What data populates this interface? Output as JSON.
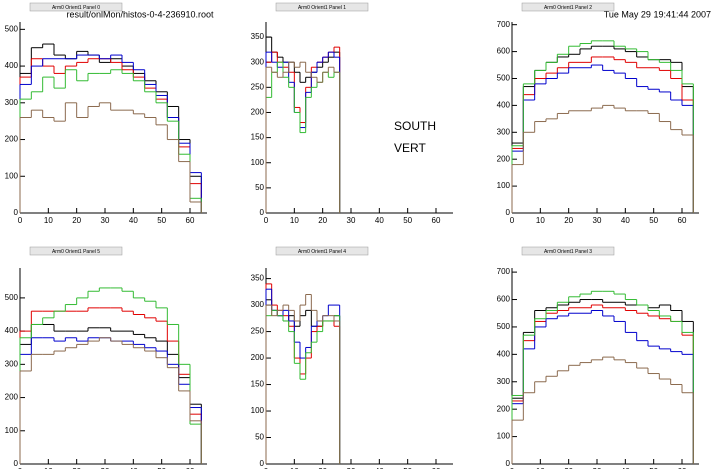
{
  "header": {
    "file": "result/onlMon/histos-0-4-236910.root",
    "date": "Tue May 29 19:41:44 2007"
  },
  "chart_data": [
    {
      "type": "histogram",
      "title": "Arm0 Orient1 Panel 0",
      "bins": [
        0,
        4,
        8,
        12,
        16,
        20,
        24,
        28,
        32,
        36,
        40,
        44,
        48,
        52,
        56,
        60,
        64
      ],
      "xlim": [
        0,
        66
      ],
      "ylim": [
        0,
        520
      ],
      "xticks": [
        0,
        10,
        20,
        30,
        40,
        50,
        60
      ],
      "yticks": [
        0,
        100,
        200,
        300,
        400,
        500
      ],
      "series": [
        {
          "color": "#000000",
          "values": [
            380,
            450,
            460,
            430,
            420,
            440,
            430,
            410,
            420,
            400,
            380,
            360,
            330,
            290,
            200,
            100
          ]
        },
        {
          "color": "#e00000",
          "values": [
            370,
            420,
            400,
            380,
            400,
            410,
            420,
            420,
            410,
            390,
            370,
            340,
            310,
            260,
            180,
            80
          ]
        },
        {
          "color": "#0000cc",
          "values": [
            350,
            400,
            420,
            420,
            420,
            430,
            430,
            420,
            430,
            410,
            390,
            350,
            320,
            260,
            190,
            110
          ]
        },
        {
          "color": "#33bb33",
          "values": [
            310,
            330,
            370,
            340,
            390,
            360,
            380,
            380,
            390,
            380,
            360,
            330,
            300,
            250,
            160,
            40
          ]
        },
        {
          "color": "#8b6a4e",
          "values": [
            260,
            280,
            260,
            250,
            300,
            260,
            290,
            300,
            280,
            280,
            270,
            260,
            240,
            200,
            140,
            30
          ]
        }
      ]
    },
    {
      "type": "histogram",
      "title": "Arm0 Orient1 Panel 1",
      "annotations": [
        "SOUTH",
        "VERT"
      ],
      "bins": [
        0,
        2,
        4,
        6,
        8,
        10,
        12,
        14,
        16,
        18,
        20,
        22,
        24,
        26
      ],
      "xlim": [
        0,
        66
      ],
      "ylim": [
        0,
        380
      ],
      "xticks": [
        0,
        10,
        20,
        30,
        40,
        50,
        60
      ],
      "yticks": [
        0,
        50,
        100,
        150,
        200,
        250,
        300,
        350
      ],
      "series": [
        {
          "color": "#000000",
          "values": [
            350,
            320,
            310,
            300,
            300,
            280,
            260,
            270,
            280,
            290,
            300,
            310,
            320
          ]
        },
        {
          "color": "#e00000",
          "values": [
            300,
            320,
            300,
            290,
            280,
            210,
            180,
            250,
            290,
            300,
            310,
            320,
            330
          ]
        },
        {
          "color": "#0000cc",
          "values": [
            320,
            300,
            290,
            300,
            260,
            200,
            170,
            240,
            280,
            300,
            310,
            320,
            310
          ]
        },
        {
          "color": "#33bb33",
          "values": [
            230,
            280,
            300,
            270,
            250,
            200,
            160,
            230,
            250,
            260,
            280,
            270,
            280
          ]
        },
        {
          "color": "#8b6a4e",
          "values": [
            290,
            280,
            270,
            280,
            300,
            290,
            300,
            280,
            270,
            260,
            280,
            290,
            280
          ]
        }
      ]
    },
    {
      "type": "histogram",
      "title": "Arm0 Orient1 Panel 2",
      "bins": [
        0,
        4,
        8,
        12,
        16,
        20,
        24,
        28,
        32,
        36,
        40,
        44,
        48,
        52,
        56,
        60,
        64
      ],
      "xlim": [
        0,
        66
      ],
      "ylim": [
        0,
        710
      ],
      "xticks": [
        0,
        10,
        20,
        30,
        40,
        50,
        60
      ],
      "yticks": [
        0,
        100,
        200,
        300,
        400,
        500,
        600,
        700
      ],
      "series": [
        {
          "color": "#000000",
          "values": [
            260,
            470,
            530,
            560,
            580,
            590,
            610,
            620,
            620,
            610,
            600,
            580,
            570,
            570,
            560,
            470
          ]
        },
        {
          "color": "#e00000",
          "values": [
            240,
            440,
            500,
            520,
            540,
            560,
            560,
            580,
            580,
            570,
            560,
            540,
            540,
            530,
            500,
            420
          ]
        },
        {
          "color": "#0000cc",
          "values": [
            230,
            420,
            480,
            500,
            520,
            540,
            540,
            550,
            530,
            520,
            500,
            470,
            460,
            450,
            420,
            400
          ]
        },
        {
          "color": "#33bb33",
          "values": [
            250,
            480,
            530,
            560,
            590,
            620,
            630,
            640,
            640,
            620,
            610,
            600,
            570,
            560,
            530,
            480
          ]
        },
        {
          "color": "#8b6a4e",
          "values": [
            180,
            300,
            340,
            350,
            370,
            380,
            380,
            390,
            400,
            390,
            380,
            380,
            370,
            340,
            310,
            290
          ]
        }
      ]
    },
    {
      "type": "histogram",
      "title": "Arm0 Orient1 Panel 5",
      "bins": [
        0,
        4,
        8,
        12,
        16,
        20,
        24,
        28,
        32,
        36,
        40,
        44,
        48,
        52,
        56,
        60,
        64
      ],
      "xlim": [
        0,
        66
      ],
      "ylim": [
        0,
        590
      ],
      "xticks": [
        0,
        10,
        20,
        30,
        40,
        50,
        60
      ],
      "yticks": [
        0,
        100,
        200,
        300,
        400,
        500
      ],
      "series": [
        {
          "color": "#000000",
          "values": [
            360,
            420,
            420,
            400,
            400,
            400,
            410,
            410,
            400,
            400,
            390,
            380,
            370,
            330,
            260,
            180
          ]
        },
        {
          "color": "#e00000",
          "values": [
            400,
            460,
            460,
            460,
            460,
            460,
            470,
            470,
            470,
            460,
            450,
            440,
            430,
            370,
            270,
            150
          ]
        },
        {
          "color": "#0000cc",
          "values": [
            330,
            380,
            380,
            370,
            380,
            370,
            380,
            380,
            370,
            370,
            360,
            350,
            340,
            300,
            240,
            170
          ]
        },
        {
          "color": "#33bb33",
          "values": [
            380,
            420,
            440,
            460,
            480,
            500,
            520,
            530,
            530,
            520,
            500,
            490,
            470,
            420,
            300,
            120
          ]
        },
        {
          "color": "#8b6a4e",
          "values": [
            280,
            330,
            330,
            340,
            350,
            360,
            370,
            380,
            370,
            360,
            350,
            340,
            320,
            290,
            220,
            130
          ]
        }
      ]
    },
    {
      "type": "histogram",
      "title": "Arm0 Orient1 Panel 4",
      "bins": [
        0,
        2,
        4,
        6,
        8,
        10,
        12,
        14,
        16,
        18,
        20,
        22,
        24,
        26
      ],
      "xlim": [
        0,
        66
      ],
      "ylim": [
        0,
        370
      ],
      "xticks": [
        0,
        10,
        20,
        30,
        40,
        50,
        60
      ],
      "yticks": [
        0,
        50,
        100,
        150,
        200,
        250,
        300,
        350
      ],
      "series": [
        {
          "color": "#000000",
          "values": [
            310,
            290,
            280,
            270,
            280,
            260,
            280,
            290,
            260,
            260,
            270,
            270,
            280
          ]
        },
        {
          "color": "#e00000",
          "values": [
            340,
            300,
            290,
            280,
            260,
            200,
            170,
            200,
            250,
            260,
            270,
            270,
            260
          ]
        },
        {
          "color": "#0000cc",
          "values": [
            330,
            290,
            280,
            290,
            270,
            230,
            200,
            220,
            260,
            270,
            280,
            300,
            300
          ]
        },
        {
          "color": "#33bb33",
          "values": [
            280,
            290,
            280,
            270,
            250,
            190,
            160,
            210,
            230,
            250,
            270,
            270,
            280
          ]
        },
        {
          "color": "#8b6a4e",
          "values": [
            300,
            280,
            290,
            300,
            290,
            270,
            300,
            320,
            290,
            270,
            280,
            280,
            270
          ]
        }
      ]
    },
    {
      "type": "histogram",
      "title": "Arm0 Orient1 Panel 3",
      "bins": [
        0,
        4,
        8,
        12,
        16,
        20,
        24,
        28,
        32,
        36,
        40,
        44,
        48,
        52,
        56,
        60,
        64
      ],
      "xlim": [
        0,
        66
      ],
      "ylim": [
        0,
        715
      ],
      "xticks": [
        0,
        10,
        20,
        30,
        40,
        50,
        60
      ],
      "yticks": [
        0,
        100,
        200,
        300,
        400,
        500,
        600,
        700
      ],
      "series": [
        {
          "color": "#000000",
          "values": [
            240,
            480,
            560,
            570,
            580,
            590,
            600,
            600,
            590,
            590,
            580,
            580,
            570,
            580,
            560,
            520
          ]
        },
        {
          "color": "#e00000",
          "values": [
            230,
            450,
            520,
            550,
            560,
            570,
            570,
            580,
            570,
            570,
            560,
            550,
            540,
            530,
            520,
            470
          ]
        },
        {
          "color": "#0000cc",
          "values": [
            220,
            420,
            500,
            530,
            540,
            550,
            550,
            560,
            540,
            520,
            480,
            450,
            430,
            420,
            410,
            400
          ]
        },
        {
          "color": "#33bb33",
          "values": [
            250,
            470,
            530,
            560,
            590,
            610,
            620,
            630,
            630,
            620,
            600,
            580,
            560,
            540,
            520,
            480
          ]
        },
        {
          "color": "#8b6a4e",
          "values": [
            160,
            260,
            300,
            320,
            340,
            360,
            370,
            380,
            390,
            380,
            370,
            350,
            330,
            310,
            290,
            260
          ]
        }
      ]
    }
  ]
}
